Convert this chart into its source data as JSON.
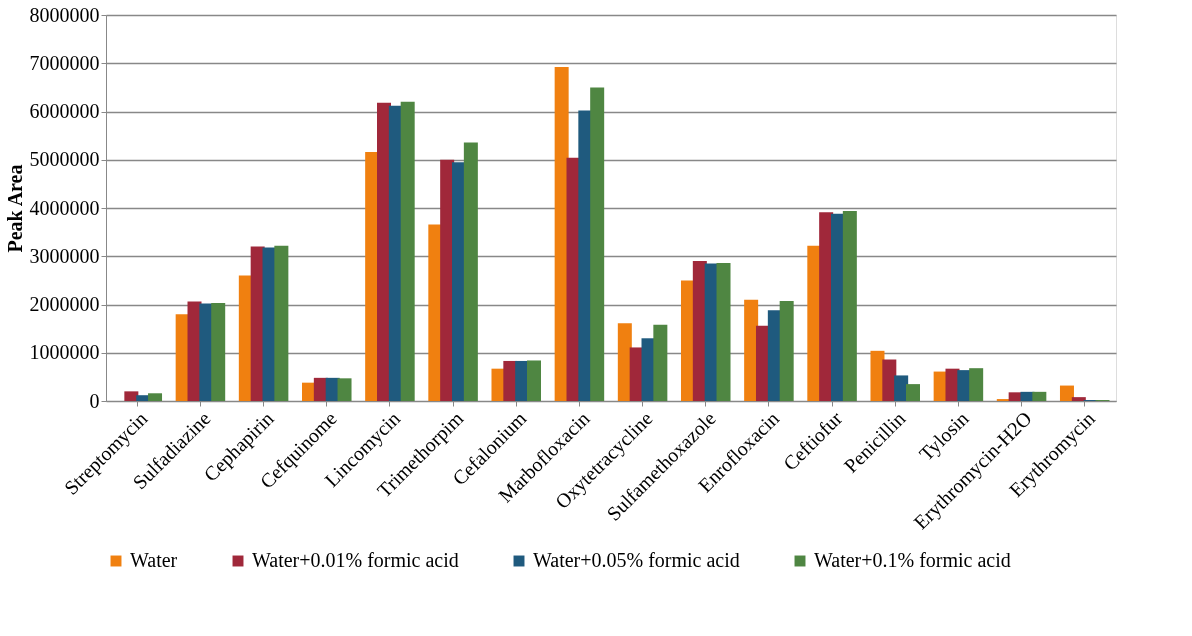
{
  "chart_data": {
    "type": "bar",
    "ylabel": "Peak Area",
    "categories": [
      "Streptomycin",
      "Sulfadiazine",
      "Cephapirin",
      "Cefquinome",
      "Lincomycin",
      "Trimethorpim",
      "Cefalonium",
      "Marbofloxacin",
      "Oxytetracycline",
      "Sulfamethoxazole",
      "Enrofloxacin",
      "Ceftiofur",
      "Penicillin",
      "Tylosin",
      "Erythromycin-H2O",
      "Erythromycin"
    ],
    "series": [
      {
        "name": "Water",
        "color": "#f08010",
        "values": [
          0,
          1800000,
          2600000,
          380000,
          5160000,
          3660000,
          670000,
          6920000,
          1610000,
          2500000,
          2100000,
          3220000,
          1040000,
          610000,
          40000,
          320000
        ]
      },
      {
        "name": "Water+0.01% formic acid",
        "color": "#a0283a",
        "values": [
          200000,
          2060000,
          3200000,
          480000,
          6180000,
          5000000,
          830000,
          5040000,
          1110000,
          2900000,
          1560000,
          3910000,
          860000,
          670000,
          180000,
          80000
        ]
      },
      {
        "name": "Water+0.05% formic acid",
        "color": "#1f5a7e",
        "values": [
          120000,
          2020000,
          3180000,
          480000,
          6120000,
          4950000,
          830000,
          6020000,
          1300000,
          2850000,
          1880000,
          3880000,
          530000,
          640000,
          190000,
          20000
        ]
      },
      {
        "name": "Water+0.1% formic acid",
        "color": "#4f8642",
        "values": [
          160000,
          2030000,
          3220000,
          470000,
          6200000,
          5360000,
          840000,
          6500000,
          1580000,
          2860000,
          2070000,
          3940000,
          350000,
          680000,
          190000,
          20000
        ]
      }
    ],
    "ylim": [
      0,
      8000000
    ],
    "yticks": [
      0,
      1000000,
      2000000,
      3000000,
      4000000,
      5000000,
      6000000,
      7000000,
      8000000
    ],
    "grid": "y",
    "legend": "bottom"
  }
}
